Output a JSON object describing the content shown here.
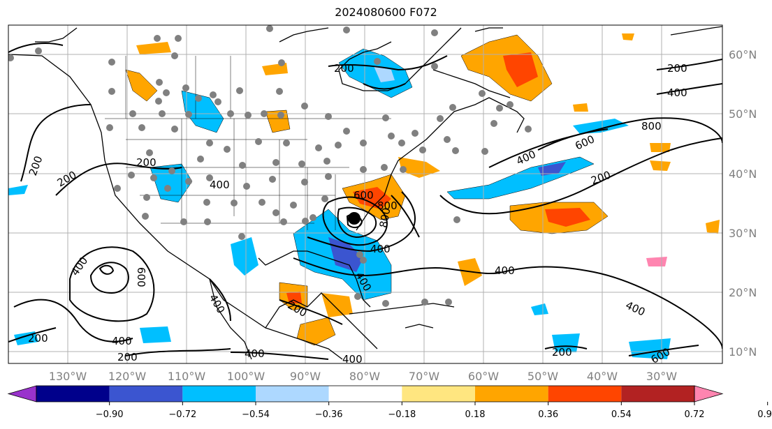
{
  "title": "2024080600 F072",
  "lon_labels": [
    "130°W",
    "120°W",
    "110°W",
    "100°W",
    "90°W",
    "80°W",
    "70°W",
    "60°W",
    "50°W",
    "40°W",
    "30°W"
  ],
  "lat_labels": [
    "60°N",
    "50°N",
    "40°N",
    "30°N",
    "20°N",
    "10°N"
  ],
  "colorbar": {
    "colors": [
      "#9932cc",
      "#00008b",
      "#3b55d0",
      "#00bfff",
      "#add8ff",
      "#ffffff",
      "#ffe680",
      "#ffa500",
      "#ff4500",
      "#b22222",
      "#ff85b0"
    ],
    "ticks": [
      "−0.90",
      "−0.72",
      "−0.54",
      "−0.36",
      "−0.18",
      "0.18",
      "0.36",
      "0.54",
      "0.72",
      "0.90"
    ]
  },
  "contour_labels": [
    "200",
    "200",
    "200",
    "200",
    "200",
    "200",
    "200",
    "200",
    "400",
    "400",
    "400",
    "400",
    "400",
    "400",
    "400",
    "400",
    "400",
    "600",
    "600",
    "600",
    "800",
    "800",
    "200",
    "400",
    "400",
    "600",
    "800",
    "200",
    "400"
  ]
}
